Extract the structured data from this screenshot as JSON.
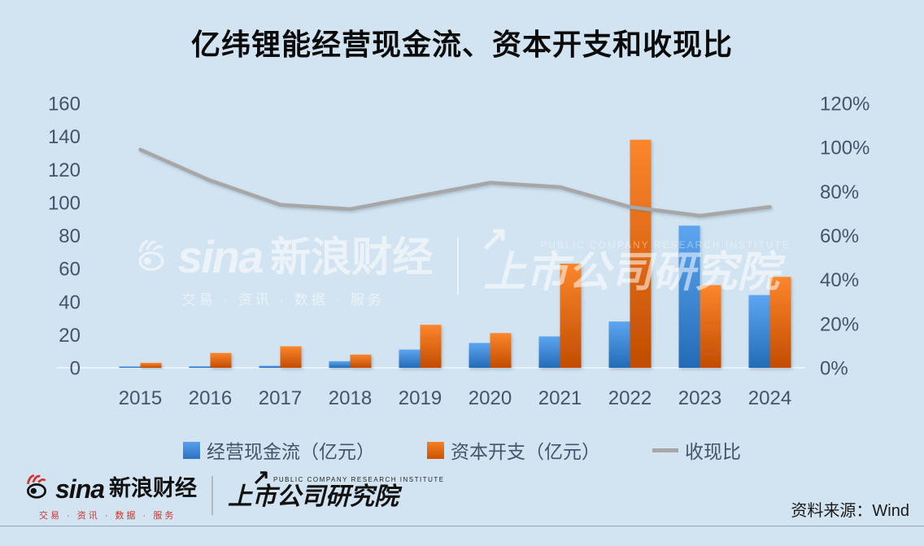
{
  "title": "亿纬锂能经营现金流、资本开支和收现比",
  "watermark": {
    "sina_word": "sina",
    "sina_name": "新浪财经",
    "sina_tagline": "交易 · 资讯 · 数据 · 服务",
    "institute": "上市公司研究院",
    "institute_en": "PUBLIC COMPANY RESEARCH INSTITUTE",
    "arrow_glyph": "↗"
  },
  "footer": {
    "sina_word": "sina",
    "sina_name": "新浪财经",
    "sina_tagline": "交易 · 资讯 · 数据 · 服务",
    "institute": "上市公司研究院",
    "institute_en": "PUBLIC COMPANY RESEARCH INSTITUTE",
    "arrow_glyph": "↗",
    "source": "资料来源：Wind"
  },
  "colors": {
    "background": "#d2e4f1",
    "axis_text": "#44546a",
    "bar_blue": "#4189d4",
    "bar_orange": "#e06a10",
    "line_gray": "#a7a7a7"
  },
  "chart_data": {
    "type": "bar+line",
    "title": "亿纬锂能经营现金流、资本开支和收现比",
    "categories": [
      "2015",
      "2016",
      "2017",
      "2018",
      "2019",
      "2020",
      "2021",
      "2022",
      "2023",
      "2024"
    ],
    "series": [
      {
        "name": "经营现金流（亿元）",
        "type": "bar",
        "axis": "left",
        "color": "#4189d4",
        "values": [
          0.8,
          0.9,
          1.2,
          4,
          11,
          15,
          19,
          28,
          86,
          44
        ]
      },
      {
        "name": "资本开支（亿元）",
        "type": "bar",
        "axis": "left",
        "color": "#e06a10",
        "values": [
          3,
          9,
          13,
          8,
          26,
          21,
          63,
          138,
          50,
          55
        ]
      },
      {
        "name": "收现比",
        "type": "line",
        "axis": "right",
        "color": "#a7a7a7",
        "unit": "%",
        "values": [
          99,
          85,
          74,
          72,
          78,
          84,
          82,
          73,
          69,
          73
        ]
      }
    ],
    "left_axis": {
      "min": 0,
      "max": 160,
      "step": 20,
      "ticks": [
        "160",
        "140",
        "120",
        "100",
        "80",
        "60",
        "40",
        "20",
        "0"
      ]
    },
    "right_axis": {
      "min": 0,
      "max": 120,
      "step": 20,
      "ticks": [
        "120%",
        "100%",
        "80%",
        "60%",
        "40%",
        "20%",
        "0%"
      ]
    },
    "legend_position": "bottom",
    "grid": false
  }
}
